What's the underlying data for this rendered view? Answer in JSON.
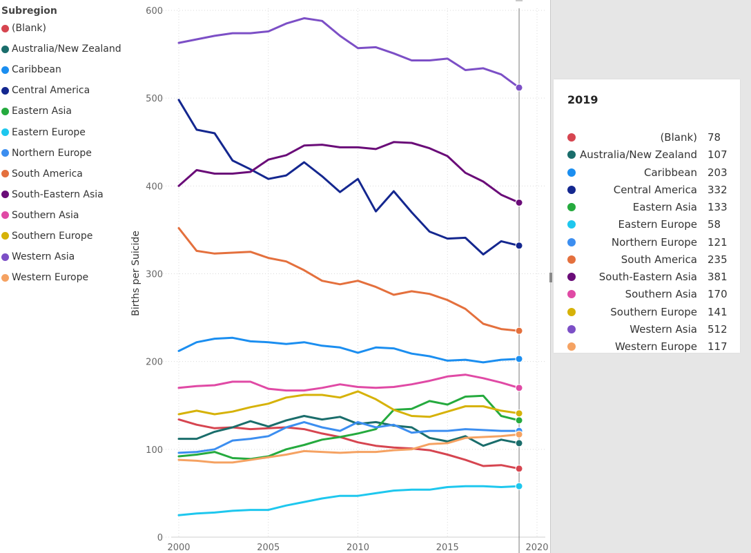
{
  "legend": {
    "title": "Subregion"
  },
  "tooltip": {
    "title": "2019"
  },
  "colors": {
    "(Blank)": "#d64550",
    "Australia/New Zealand": "#1a6d6b",
    "Caribbean": "#1b8ef0",
    "Central America": "#14278f",
    "Eastern Asia": "#25aa3e",
    "Eastern Europe": "#1ec7ee",
    "Northern Europe": "#3c8ef0",
    "South America": "#e4703d",
    "South-Eastern Asia": "#6a0c78",
    "Southern Asia": "#e04aa5",
    "Southern Europe": "#d6b208",
    "Western Asia": "#7c4fc6",
    "Western Europe": "#f5a262"
  },
  "chart_data": {
    "type": "line",
    "title": "",
    "xlabel": "",
    "ylabel": "Births per Suicide",
    "xlim": [
      2000,
      2020
    ],
    "ylim": [
      0,
      600
    ],
    "x_ticks": [
      "2000",
      "2005",
      "2010",
      "2015",
      "2020"
    ],
    "y_ticks": [
      "0",
      "100",
      "200",
      "300",
      "400",
      "500",
      "600"
    ],
    "grid": true,
    "legend_position": "left",
    "x": [
      2000,
      2001,
      2002,
      2003,
      2004,
      2005,
      2006,
      2007,
      2008,
      2009,
      2010,
      2011,
      2012,
      2013,
      2014,
      2015,
      2016,
      2017,
      2018,
      2019
    ],
    "series": [
      {
        "name": "(Blank)",
        "values": [
          134,
          128,
          124,
          125,
          123,
          124,
          125,
          123,
          118,
          114,
          108,
          104,
          102,
          101,
          99,
          94,
          88,
          81,
          82,
          78
        ]
      },
      {
        "name": "Australia/New Zealand",
        "values": [
          112,
          112,
          120,
          125,
          132,
          126,
          133,
          138,
          134,
          137,
          129,
          131,
          127,
          125,
          113,
          109,
          115,
          104,
          111,
          107
        ]
      },
      {
        "name": "Caribbean",
        "values": [
          212,
          222,
          226,
          227,
          223,
          222,
          220,
          222,
          218,
          216,
          210,
          216,
          215,
          209,
          206,
          201,
          202,
          199,
          202,
          203
        ]
      },
      {
        "name": "Central America",
        "values": [
          498,
          464,
          460,
          429,
          419,
          408,
          412,
          427,
          411,
          393,
          408,
          371,
          394,
          370,
          348,
          340,
          341,
          322,
          337,
          332
        ]
      },
      {
        "name": "Eastern Asia",
        "values": [
          92,
          94,
          97,
          90,
          89,
          92,
          100,
          105,
          111,
          114,
          118,
          123,
          145,
          146,
          155,
          151,
          160,
          161,
          138,
          133
        ]
      },
      {
        "name": "Eastern Europe",
        "values": [
          25,
          27,
          28,
          30,
          31,
          31,
          36,
          40,
          44,
          47,
          47,
          50,
          53,
          54,
          54,
          57,
          58,
          58,
          57,
          58
        ]
      },
      {
        "name": "Northern Europe",
        "values": [
          96,
          97,
          100,
          110,
          112,
          115,
          125,
          131,
          125,
          121,
          131,
          125,
          128,
          119,
          121,
          121,
          123,
          122,
          121,
          121
        ]
      },
      {
        "name": "South America",
        "values": [
          352,
          326,
          323,
          324,
          325,
          318,
          314,
          304,
          292,
          288,
          292,
          285,
          276,
          280,
          277,
          270,
          260,
          243,
          237,
          235
        ]
      },
      {
        "name": "South-Eastern Asia",
        "values": [
          400,
          418,
          414,
          414,
          416,
          430,
          435,
          446,
          447,
          444,
          444,
          442,
          450,
          449,
          443,
          434,
          415,
          405,
          390,
          381
        ]
      },
      {
        "name": "Southern Asia",
        "values": [
          170,
          172,
          173,
          177,
          177,
          169,
          167,
          167,
          170,
          174,
          171,
          170,
          171,
          174,
          178,
          183,
          185,
          181,
          176,
          170
        ]
      },
      {
        "name": "Southern Europe",
        "values": [
          140,
          144,
          140,
          143,
          148,
          152,
          159,
          162,
          162,
          159,
          166,
          157,
          145,
          138,
          137,
          143,
          149,
          149,
          144,
          141
        ]
      },
      {
        "name": "Western Asia",
        "values": [
          563,
          567,
          571,
          574,
          574,
          576,
          585,
          591,
          588,
          571,
          557,
          558,
          551,
          543,
          543,
          545,
          532,
          534,
          527,
          512
        ]
      },
      {
        "name": "Western Europe",
        "values": [
          88,
          87,
          85,
          85,
          88,
          91,
          94,
          98,
          97,
          96,
          97,
          97,
          99,
          100,
          106,
          107,
          113,
          114,
          115,
          117
        ]
      }
    ],
    "hover": {
      "x": "2019",
      "rows": [
        {
          "name": "(Blank)",
          "value": "78"
        },
        {
          "name": "Australia/New Zealand",
          "value": "107"
        },
        {
          "name": "Caribbean",
          "value": "203"
        },
        {
          "name": "Central America",
          "value": "332"
        },
        {
          "name": "Eastern Asia",
          "value": "133"
        },
        {
          "name": "Eastern Europe",
          "value": "58"
        },
        {
          "name": "Northern Europe",
          "value": "121"
        },
        {
          "name": "South America",
          "value": "235"
        },
        {
          "name": "South-Eastern Asia",
          "value": "381"
        },
        {
          "name": "Southern Asia",
          "value": "170"
        },
        {
          "name": "Southern Europe",
          "value": "141"
        },
        {
          "name": "Western Asia",
          "value": "512"
        },
        {
          "name": "Western Europe",
          "value": "117"
        }
      ]
    }
  }
}
